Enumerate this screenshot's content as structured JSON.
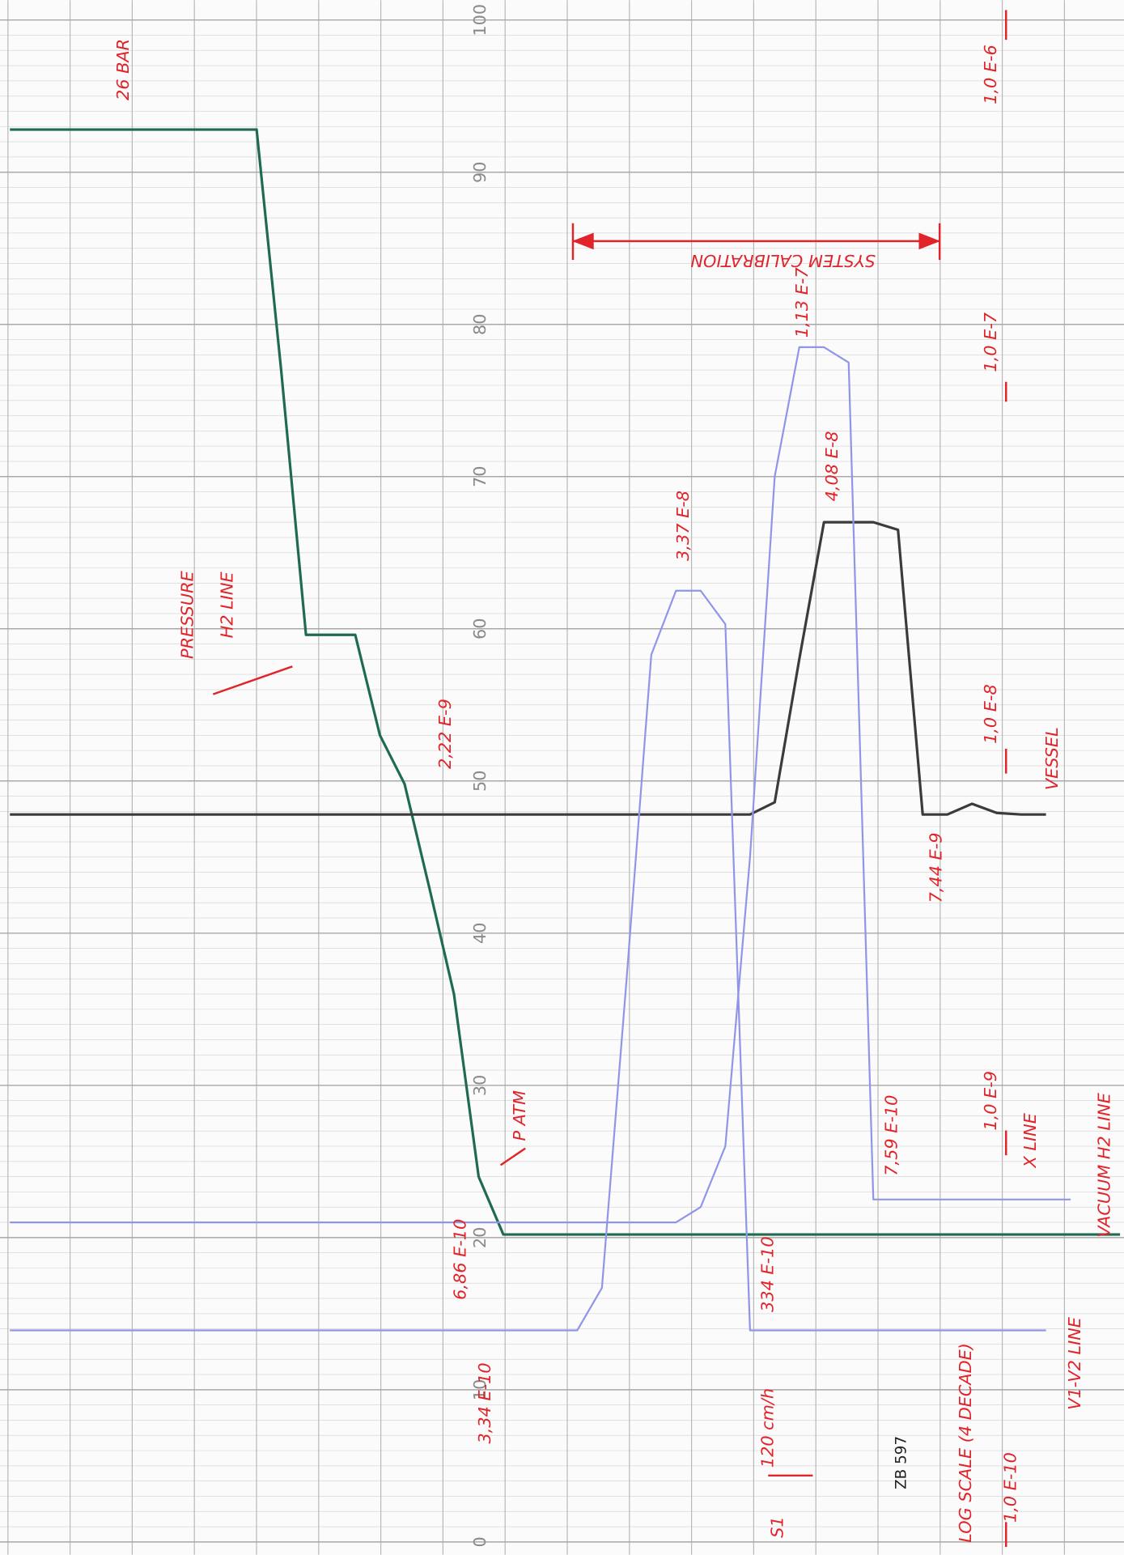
{
  "chart_data": {
    "type": "line",
    "categories": [
      null,
      null,
      null,
      null,
      null,
      null,
      null,
      null,
      null,
      null,
      null,
      null,
      null,
      null,
      null,
      null,
      null,
      null,
      null,
      null,
      null,
      null,
      null,
      null,
      null,
      null,
      null,
      null,
      null,
      null,
      null,
      null,
      null,
      null,
      null,
      null,
      null,
      null,
      null,
      null,
      null,
      null,
      null,
      null,
      null,
      null
    ],
    "series": [
      {
        "color": "#1f6b50",
        "values": [
          92.8,
          92.8,
          92.8,
          92.8,
          92.8,
          92.8,
          92.8,
          92.8,
          92.8,
          92.8,
          92.8,
          76.9,
          59.6,
          59.6,
          59.6,
          53,
          49.8,
          43,
          36,
          24,
          20.2,
          20.2,
          20.2,
          20.2,
          20.2,
          20.2,
          20.2,
          20.2,
          20.2,
          20.2,
          20.2,
          20.2,
          20.2,
          20.2,
          20.2,
          20.2,
          20.2,
          20.2,
          20.2,
          20.2,
          20.2,
          20.2,
          20.2,
          20.2,
          20.2,
          20.2
        ]
      },
      {
        "color": "#3b3b3b",
        "values": [
          47.8,
          47.8,
          47.8,
          47.8,
          47.8,
          47.8,
          47.8,
          47.8,
          47.8,
          47.8,
          47.8,
          47.8,
          47.8,
          47.8,
          47.8,
          47.8,
          47.8,
          47.8,
          47.8,
          47.8,
          47.8,
          47.8,
          47.8,
          47.8,
          47.8,
          47.8,
          47.8,
          47.8,
          47.8,
          47.8,
          47.8,
          48.6,
          58,
          67.0,
          67.0,
          67.0,
          66.5,
          47.8,
          47.8,
          48.5,
          47.9,
          47.8,
          47.8,
          null,
          null,
          null
        ]
      },
      {
        "color": "#8f96ea",
        "values": [
          21.0,
          21.0,
          21.0,
          21.0,
          21.0,
          21.0,
          21.0,
          21.0,
          21.0,
          21.0,
          21.0,
          21.0,
          21.0,
          21.0,
          21.0,
          21.0,
          21.0,
          21.0,
          21.0,
          21.0,
          21.0,
          21.0,
          21.0,
          21.0,
          21.0,
          21.0,
          21.0,
          21.0,
          22.0,
          26,
          45,
          70,
          78.5,
          78.5,
          77.5,
          22.5,
          22.5,
          22.5,
          22.5,
          22.5,
          22.5,
          22.5,
          22.5,
          22.5,
          null,
          null
        ]
      },
      {
        "color": "#8f96ea",
        "values": [
          13.9,
          13.9,
          13.9,
          13.9,
          13.9,
          13.9,
          13.9,
          13.9,
          13.9,
          13.9,
          13.9,
          13.9,
          13.9,
          13.9,
          13.9,
          13.9,
          13.9,
          13.9,
          13.9,
          13.9,
          13.9,
          13.9,
          13.9,
          13.9,
          16.7,
          37,
          58.3,
          62.5,
          62.5,
          60.3,
          13.9,
          13.9,
          13.9,
          13.9,
          13.9,
          13.9,
          13.9,
          13.9,
          13.9,
          13.9,
          13.9,
          13.9,
          13.9,
          null,
          null,
          null
        ]
      }
    ],
    "ylim": [
      0,
      100
    ],
    "yticks": [
      0,
      10,
      20,
      30,
      40,
      50,
      60,
      70,
      80,
      90,
      100
    ],
    "grid": true,
    "annotations": [
      "26 BAR",
      "PRESSURE",
      "H2 LINE",
      "SYSTEM CALIBRATION",
      "1,13 E-7",
      "3,37 E-8",
      "4,08 E-8",
      "2,22 E-9",
      "7,44 E-9",
      "1,0 E-6",
      "1,0 E-7",
      "1,0 E-8",
      "VESSEL",
      "P ATM",
      "6,86 E-10",
      "3,34 E-10",
      "334 E-10",
      "7,59 E-10",
      "1,0 E-9",
      "X LINE",
      "VACUUM H2 LINE",
      "120 cm/h",
      "S1",
      "ZB 597",
      "LOG SCALE (4 DECADE)",
      "1,0 E-10",
      "V1-V2 LINE"
    ]
  }
}
